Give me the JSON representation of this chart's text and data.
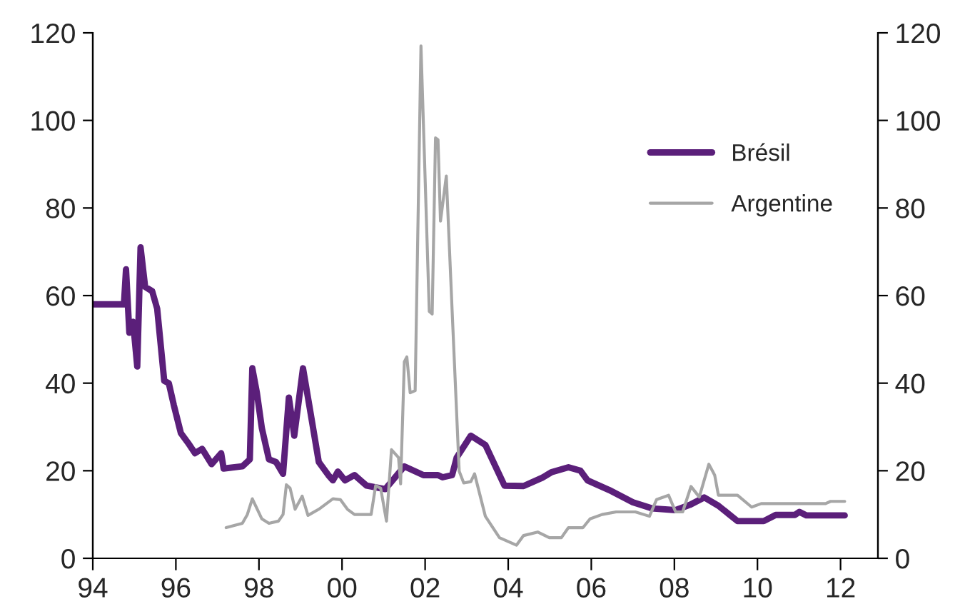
{
  "chart_data": {
    "type": "line",
    "xlim": [
      1994,
      2012.9
    ],
    "xticks": [
      {
        "value": 1994,
        "label": "94"
      },
      {
        "value": 1996,
        "label": "96"
      },
      {
        "value": 1998,
        "label": "98"
      },
      {
        "value": 2000,
        "label": "00"
      },
      {
        "value": 2002,
        "label": "02"
      },
      {
        "value": 2004,
        "label": "04"
      },
      {
        "value": 2006,
        "label": "06"
      },
      {
        "value": 2008,
        "label": "08"
      },
      {
        "value": 2010,
        "label": "10"
      },
      {
        "value": 2012,
        "label": "12"
      }
    ],
    "ylim": [
      0,
      120
    ],
    "yticks": [
      0,
      20,
      40,
      60,
      80,
      100,
      120
    ],
    "y2lim": [
      0,
      120
    ],
    "y2ticks": [
      0,
      20,
      40,
      60,
      80,
      100,
      120
    ],
    "grid": false,
    "legend": "right",
    "marker": "none",
    "line_style": "solid",
    "series": [
      {
        "name": "Brésil",
        "color": "#5b1f7a",
        "x": [
          1994.0,
          1994.75,
          1994.8,
          1994.88,
          1994.97,
          1995.07,
          1995.15,
          1995.26,
          1995.43,
          1995.55,
          1995.72,
          1995.83,
          1995.95,
          1996.12,
          1996.29,
          1996.46,
          1996.63,
          1996.86,
          1997.09,
          1997.15,
          1997.6,
          1997.78,
          1997.84,
          1997.95,
          1998.07,
          1998.24,
          1998.41,
          1998.58,
          1998.72,
          1998.85,
          1999.06,
          1999.21,
          1999.44,
          1999.67,
          1999.78,
          1999.9,
          2000.07,
          2000.3,
          2000.59,
          2001.04,
          2001.27,
          2001.5,
          2001.96,
          2002.31,
          2002.42,
          2002.65,
          2002.76,
          2003.1,
          2003.45,
          2003.91,
          2004.37,
          2004.82,
          2005.05,
          2005.45,
          2005.74,
          2005.91,
          2006.43,
          2007.0,
          2007.46,
          2008.03,
          2008.37,
          2008.72,
          2009.06,
          2009.52,
          2010.15,
          2010.44,
          2010.9,
          2011.01,
          2011.18,
          2012.1
        ],
        "values": [
          58,
          58,
          66,
          51.5,
          54,
          43.8,
          71,
          62,
          61,
          57,
          40.5,
          40,
          35,
          28.6,
          26.4,
          24,
          25,
          21.5,
          24,
          20.5,
          21,
          22.6,
          43.4,
          37.8,
          29.7,
          22.6,
          22,
          19.3,
          36.7,
          28,
          43.4,
          35,
          22,
          19,
          17.8,
          19.8,
          17.8,
          19,
          16.6,
          15.8,
          18.4,
          21,
          19,
          19,
          18.5,
          19,
          23,
          28,
          25.9,
          16.6,
          16.5,
          18.4,
          19.7,
          20.8,
          20,
          17.8,
          15.6,
          12.8,
          11.4,
          11,
          12.2,
          13.9,
          12,
          8.5,
          8.5,
          9.9,
          9.9,
          10.6,
          9.8,
          9.8
        ]
      },
      {
        "name": "Argentine",
        "color": "#a6a6a6",
        "x": [
          1997.21,
          1997.6,
          1997.72,
          1997.84,
          1998.07,
          1998.24,
          1998.47,
          1998.58,
          1998.66,
          1998.75,
          1998.87,
          1999.04,
          1999.18,
          1999.44,
          1999.78,
          1999.96,
          2000.13,
          2000.3,
          2000.7,
          2000.81,
          2000.93,
          2001.07,
          2001.19,
          2001.36,
          2001.41,
          2001.5,
          2001.56,
          2001.64,
          2001.76,
          2001.9,
          2002.1,
          2002.17,
          2002.25,
          2002.31,
          2002.37,
          2002.51,
          2002.65,
          2002.82,
          2002.93,
          2003.1,
          2003.19,
          2003.45,
          2003.79,
          2004.2,
          2004.37,
          2004.71,
          2004.99,
          2005.28,
          2005.45,
          2005.8,
          2005.97,
          2006.26,
          2006.6,
          2007.06,
          2007.4,
          2007.57,
          2007.86,
          2008.03,
          2008.2,
          2008.4,
          2008.6,
          2008.83,
          2008.97,
          2009.06,
          2009.52,
          2009.86,
          2010.09,
          2010.44,
          2011.64,
          2011.76,
          2012.1
        ],
        "values": [
          7,
          8,
          10,
          13.6,
          9,
          8,
          8.5,
          10,
          16.8,
          16,
          11.2,
          14.2,
          9.8,
          11.2,
          13.6,
          13.4,
          11.2,
          10,
          10,
          16.6,
          16,
          8.5,
          24.8,
          23,
          17,
          44.9,
          46,
          37.8,
          38.3,
          117,
          56.4,
          55.8,
          96,
          95.6,
          77,
          87.3,
          56.6,
          19.9,
          17.2,
          17.5,
          19.3,
          9.6,
          4.7,
          3,
          5.2,
          6,
          4.7,
          4.7,
          7,
          7,
          9,
          10,
          10.6,
          10.6,
          9.6,
          13.4,
          14.4,
          10.6,
          10.6,
          16.4,
          14,
          21.5,
          19,
          14.4,
          14.4,
          11.7,
          12.5,
          12.5,
          12.5,
          13,
          13
        ]
      }
    ]
  }
}
